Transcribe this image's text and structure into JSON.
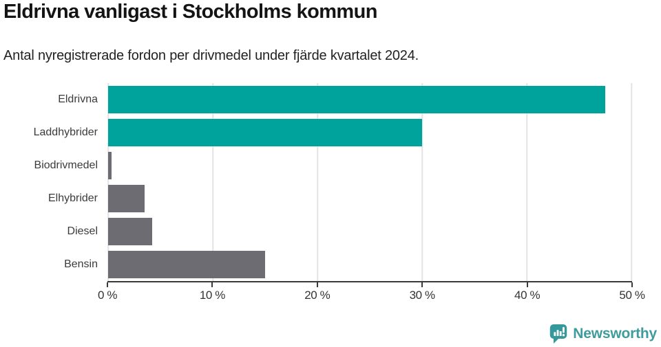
{
  "header": {
    "title": "Eldrivna vanligast i Stockholms kommun",
    "subtitle": "Antal nyregistrerade fordon per drivmedel under fjärde kvartalet 2024."
  },
  "chart_data": {
    "type": "bar",
    "orientation": "horizontal",
    "title": "Eldrivna vanligast i Stockholms kommun",
    "subtitle": "Antal nyregistrerade fordon per drivmedel under fjärde kvartalet 2024.",
    "categories": [
      "Eldrivna",
      "Laddhybrider",
      "Biodrivmedel",
      "Elhybrider",
      "Diesel",
      "Bensin"
    ],
    "values": [
      47.5,
      30,
      0.3,
      3.5,
      4.2,
      15
    ],
    "unit": "%",
    "xlim": [
      0,
      50
    ],
    "x_ticks": [
      0,
      10,
      20,
      30,
      40,
      50
    ],
    "x_tick_labels": [
      "0 %",
      "10 %",
      "20 %",
      "30 %",
      "40 %",
      "50 %"
    ],
    "grid": true,
    "legend": "none",
    "colors": {
      "highlight": "#00a39b",
      "default": "#6c6c72",
      "bar_colors": [
        "#00a39b",
        "#00a39b",
        "#6c6c72",
        "#6c6c72",
        "#6c6c72",
        "#6c6c72"
      ],
      "gridline": "#e3e3e3",
      "axis": "#3a3a3a"
    }
  },
  "footer": {
    "brand": "Newsworthy",
    "brand_color": "#3f9b9c",
    "logo_icon": "bar-chart-speech-bubble-icon"
  }
}
